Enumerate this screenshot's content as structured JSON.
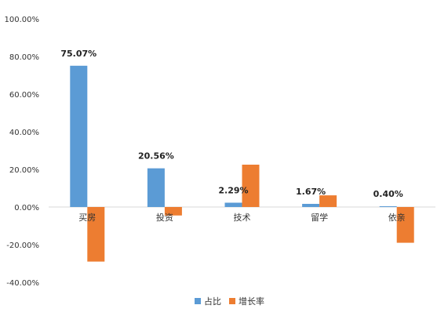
{
  "chart_data": {
    "type": "bar",
    "categories": [
      "买房",
      "投资",
      "技术",
      "留学",
      "依亲"
    ],
    "series": [
      {
        "name": "占比",
        "color": "#5b9bd5",
        "values": [
          75.07,
          20.56,
          2.29,
          1.67,
          0.4
        ]
      },
      {
        "name": "增长率",
        "color": "#ed7d31",
        "values": [
          -29.0,
          -4.5,
          22.5,
          6.2,
          -19.0
        ]
      }
    ],
    "data_labels": [
      "75.07%",
      "20.56%",
      "2.29%",
      "1.67%",
      "0.40%"
    ],
    "ylim": [
      -40,
      100
    ],
    "yticks": [
      100,
      80,
      60,
      40,
      20,
      0,
      -20,
      -40
    ],
    "ytick_labels": [
      "100.00%",
      "80.00%",
      "60.00%",
      "40.00%",
      "20.00%",
      "0.00%",
      "-20.00%",
      "-40.00%"
    ],
    "title": "",
    "xlabel": "",
    "ylabel": "",
    "grid": false,
    "legend": "bottom"
  }
}
